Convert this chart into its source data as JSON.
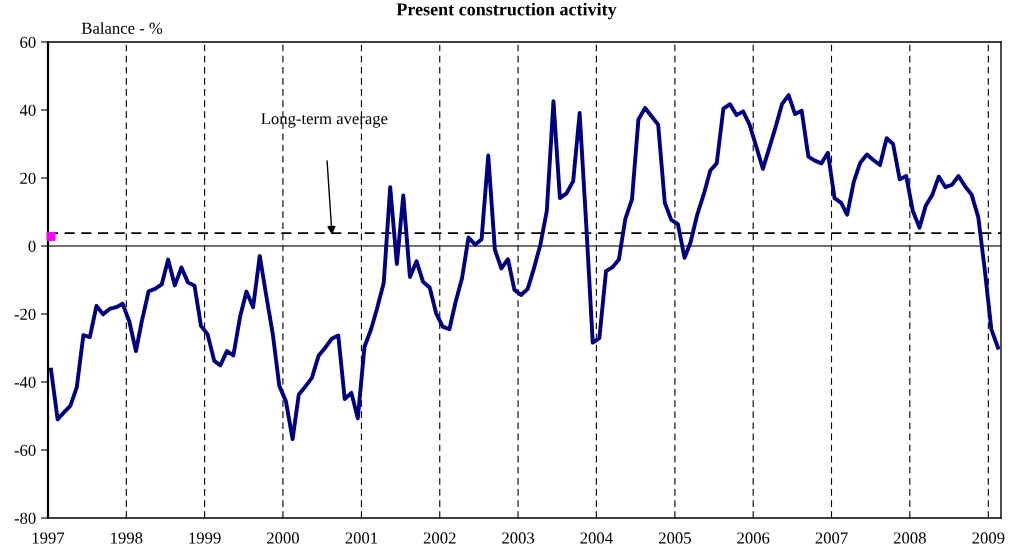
{
  "chart_data": {
    "type": "line",
    "title": "Present construction activity",
    "ylabel": "Balance - %",
    "x": [
      "1997-01",
      "1997-02",
      "1997-03",
      "1997-04",
      "1997-05",
      "1997-06",
      "1997-07",
      "1997-08",
      "1997-09",
      "1997-10",
      "1997-11",
      "1997-12",
      "1998-01",
      "1998-02",
      "1998-03",
      "1998-04",
      "1998-05",
      "1998-06",
      "1998-07",
      "1998-08",
      "1998-09",
      "1998-10",
      "1998-11",
      "1998-12",
      "1999-01",
      "1999-02",
      "1999-03",
      "1999-04",
      "1999-05",
      "1999-06",
      "1999-07",
      "1999-08",
      "1999-09",
      "1999-10",
      "1999-11",
      "1999-12",
      "2000-01",
      "2000-02",
      "2000-03",
      "2000-04",
      "2000-05",
      "2000-06",
      "2000-07",
      "2000-08",
      "2000-09",
      "2000-10",
      "2000-11",
      "2000-12",
      "2001-01",
      "2001-02",
      "2001-03",
      "2001-04",
      "2001-05",
      "2001-06",
      "2001-07",
      "2001-08",
      "2001-09",
      "2001-10",
      "2001-11",
      "2001-12",
      "2002-01",
      "2002-02",
      "2002-03",
      "2002-04",
      "2002-05",
      "2002-06",
      "2002-07",
      "2002-08",
      "2002-09",
      "2002-10",
      "2002-11",
      "2002-12",
      "2003-01",
      "2003-02",
      "2003-03",
      "2003-04",
      "2003-05",
      "2003-06",
      "2003-07",
      "2003-08",
      "2003-09",
      "2003-10",
      "2003-11",
      "2003-12",
      "2004-01",
      "2004-02",
      "2004-03",
      "2004-04",
      "2004-05",
      "2004-06",
      "2004-07",
      "2004-08",
      "2004-09",
      "2004-10",
      "2004-11",
      "2004-12",
      "2005-01",
      "2005-02",
      "2005-03",
      "2005-04",
      "2005-05",
      "2005-06",
      "2005-07",
      "2005-08",
      "2005-09",
      "2005-10",
      "2005-11",
      "2005-12",
      "2006-01",
      "2006-02",
      "2006-03",
      "2006-04",
      "2006-05",
      "2006-06",
      "2006-07",
      "2006-08",
      "2006-09",
      "2006-10",
      "2006-11",
      "2006-12",
      "2007-01",
      "2007-02",
      "2007-03",
      "2007-04",
      "2007-05",
      "2007-06",
      "2007-07",
      "2007-08",
      "2007-09",
      "2007-10",
      "2007-11",
      "2007-12",
      "2008-01",
      "2008-02",
      "2008-03",
      "2008-04",
      "2008-05",
      "2008-06",
      "2008-07",
      "2008-08",
      "2008-09",
      "2008-10",
      "2008-11",
      "2008-12",
      "2009-01",
      "2009-02"
    ],
    "series": [
      {
        "color": "#000080",
        "values": [
          -36.4,
          -51,
          -49,
          -47,
          -41.6,
          -26.2,
          -26.8,
          -17.6,
          -20.1,
          -18.5,
          -18,
          -17,
          -22.2,
          -30.9,
          -21.9,
          -13.3,
          -12.6,
          -11.3,
          -4,
          -11.6,
          -6.3,
          -10.7,
          -11.7,
          -23.5,
          -26,
          -33.8,
          -35.1,
          -30.9,
          -32.2,
          -20.9,
          -13.4,
          -18,
          -2.9,
          -14.5,
          -26,
          -41.1,
          -45.7,
          -56.8,
          -43.7,
          -41.3,
          -38.8,
          -32.3,
          -30,
          -27.3,
          -26.3,
          -45,
          -43.2,
          -50.7,
          -29.7,
          -24.5,
          -18.3,
          -10.8,
          17.3,
          -5.3,
          14.9,
          -9.1,
          -4.5,
          -10.5,
          -12.2,
          -19.8,
          -23.7,
          -24.5,
          -16.7,
          -9.4,
          2.5,
          0.4,
          2,
          26.6,
          -1.1,
          -6.6,
          -3.9,
          -12.9,
          -14.4,
          -12.6,
          -6.8,
          0.4,
          10.3,
          42.6,
          14.1,
          15.5,
          19.1,
          39.1,
          6,
          -28.4,
          -27.1,
          -7.4,
          -6.3,
          -4,
          8,
          13.7,
          37.2,
          40.6,
          38.1,
          35.7,
          12.7,
          7.7,
          6.4,
          -3.5,
          1.1,
          9.2,
          15.1,
          22.2,
          24.3,
          40.4,
          41.7,
          38.5,
          39.6,
          35.7,
          29.3,
          22.7,
          28.4,
          34.9,
          41.7,
          44.4,
          38.8,
          39.8,
          26.3,
          25.1,
          24.3,
          27.4,
          14.1,
          12.7,
          9.2,
          18.9,
          24.5,
          26.9,
          25.3,
          23.8,
          31.7,
          30,
          19.6,
          20.6,
          10.3,
          5.4,
          11.8,
          15.1,
          20.4,
          17.3,
          18,
          20.6,
          17.5,
          15.1,
          8.5,
          -6.8,
          -24.5,
          -29.9
        ]
      },
      {
        "type": "scatter",
        "marker": "square",
        "color": "#ff00ff",
        "x": [
          "1997-01"
        ],
        "values": [
          2.8
        ]
      }
    ],
    "ref_lines": [
      {
        "axis": "y",
        "value": 3.8,
        "color": "#000000",
        "line_style": "dashed"
      },
      {
        "axis": "y",
        "value": 0,
        "color": "#404040",
        "line_style": "solid"
      }
    ],
    "annotations": [
      "Long-term average"
    ],
    "xlim": [
      "1997-01-01",
      "2009-03-01"
    ],
    "xticks": [
      {
        "value": "1997-01-01",
        "label": "1997"
      },
      {
        "value": "1998-01-01",
        "label": "1998"
      },
      {
        "value": "1999-01-01",
        "label": "1999"
      },
      {
        "value": "2000-01-01",
        "label": "2000"
      },
      {
        "value": "2001-01-01",
        "label": "2001"
      },
      {
        "value": "2002-01-01",
        "label": "2002"
      },
      {
        "value": "2003-01-01",
        "label": "2003"
      },
      {
        "value": "2004-01-01",
        "label": "2004"
      },
      {
        "value": "2005-01-01",
        "label": "2005"
      },
      {
        "value": "2006-01-01",
        "label": "2006"
      },
      {
        "value": "2007-01-01",
        "label": "2007"
      },
      {
        "value": "2008-01-01",
        "label": "2008"
      },
      {
        "value": "2009-01-01",
        "label": "2009"
      }
    ],
    "ylim": [
      -80,
      60
    ],
    "yticks": [
      -80,
      -60,
      -40,
      -20,
      0,
      20,
      40,
      60
    ],
    "grid": "x",
    "legend": false,
    "line_style": "solid",
    "marker": "none"
  }
}
